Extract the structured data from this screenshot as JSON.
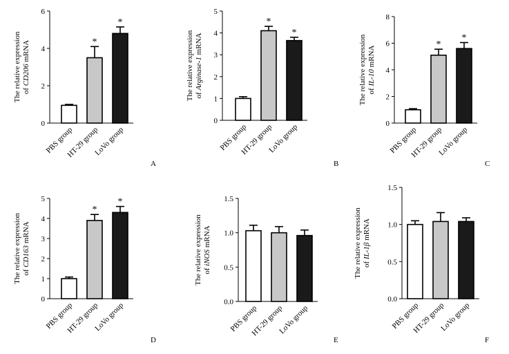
{
  "colors": {
    "pbs": "#ffffff",
    "ht29": "#c8c8c8",
    "lovo": "#1a1a1a",
    "axis": "#000000"
  },
  "chart_data": [
    {
      "type": "bar",
      "letter": "A",
      "ylabel_line1": "The relative expression",
      "ylabel_prefix": "of ",
      "ylabel_gene": "CD206",
      "ylabel_suffix": " mRNA",
      "categories": [
        "PBS group",
        "HT-29 group",
        "LoVo group"
      ],
      "values": [
        0.95,
        3.5,
        4.8
      ],
      "errors": [
        0.05,
        0.6,
        0.35
      ],
      "significant": [
        false,
        true,
        true
      ],
      "sig_mark": "*",
      "ylim": [
        0,
        6
      ],
      "yticks": [
        "0",
        "2",
        "4",
        "6"
      ],
      "tick_values": [
        0,
        2,
        4,
        6
      ]
    },
    {
      "type": "bar",
      "letter": "B",
      "ylabel_line1": "The relative expression",
      "ylabel_prefix": "of ",
      "ylabel_gene": "Arginase-1",
      "ylabel_suffix": " mRNA",
      "categories": [
        "PBS group",
        "HT-29 group",
        "LoVo group"
      ],
      "values": [
        1.0,
        4.1,
        3.65
      ],
      "errors": [
        0.08,
        0.2,
        0.15
      ],
      "significant": [
        false,
        true,
        true
      ],
      "sig_mark": "*",
      "ylim": [
        0,
        5
      ],
      "yticks": [
        "0",
        "1",
        "2",
        "3",
        "4",
        "5"
      ],
      "tick_values": [
        0,
        1,
        2,
        3,
        4,
        5
      ]
    },
    {
      "type": "bar",
      "letter": "C",
      "ylabel_line1": "The relative expression",
      "ylabel_prefix": "of ",
      "ylabel_gene": "IL-10",
      "ylabel_suffix": " mRNA",
      "categories": [
        "PBS group",
        "HT-29 group",
        "LoVo group"
      ],
      "values": [
        1.0,
        5.1,
        5.6
      ],
      "errors": [
        0.08,
        0.45,
        0.45
      ],
      "significant": [
        false,
        true,
        true
      ],
      "sig_mark": "*",
      "ylim": [
        0,
        8
      ],
      "yticks": [
        "0",
        "2",
        "4",
        "6",
        "8"
      ],
      "tick_values": [
        0,
        2,
        4,
        6,
        8
      ]
    },
    {
      "type": "bar",
      "letter": "D",
      "ylabel_line1": "The relative expression",
      "ylabel_prefix": "of ",
      "ylabel_gene": "CD163",
      "ylabel_suffix": " mRNA",
      "categories": [
        "PBS group",
        "HT-29 group",
        "LoVo group"
      ],
      "values": [
        1.0,
        3.9,
        4.3
      ],
      "errors": [
        0.08,
        0.3,
        0.3
      ],
      "significant": [
        false,
        true,
        true
      ],
      "sig_mark": "*",
      "ylim": [
        0,
        5
      ],
      "yticks": [
        "0",
        "1",
        "2",
        "3",
        "4",
        "5"
      ],
      "tick_values": [
        0,
        1,
        2,
        3,
        4,
        5
      ]
    },
    {
      "type": "bar",
      "letter": "E",
      "ylabel_line1": "The relative expression",
      "ylabel_prefix": "of ",
      "ylabel_gene": "iNOS",
      "ylabel_suffix": " mRNA",
      "categories": [
        "PBS group",
        "HT-29 group",
        "LoVo group"
      ],
      "values": [
        1.03,
        1.0,
        0.96
      ],
      "errors": [
        0.08,
        0.09,
        0.08
      ],
      "significant": [
        false,
        false,
        false
      ],
      "sig_mark": "*",
      "ylim": [
        0,
        1.5
      ],
      "yticks": [
        "0.0",
        "0.5",
        "1.0",
        "1.5"
      ],
      "tick_values": [
        0,
        0.5,
        1.0,
        1.5
      ]
    },
    {
      "type": "bar",
      "letter": "F",
      "ylabel_line1": "The relative expression",
      "ylabel_prefix": "of ",
      "ylabel_gene": "IL-1β",
      "ylabel_suffix": " mRNA",
      "categories": [
        "PBS group",
        "HT-29 group",
        "LoVo group"
      ],
      "values": [
        1.0,
        1.04,
        1.04
      ],
      "errors": [
        0.05,
        0.12,
        0.05
      ],
      "significant": [
        false,
        false,
        false
      ],
      "sig_mark": "*",
      "ylim": [
        0,
        1.5
      ],
      "yticks": [
        "0.0",
        "0.5",
        "1.0",
        "1.5"
      ],
      "tick_values": [
        0,
        0.5,
        1.0,
        1.5
      ]
    }
  ]
}
